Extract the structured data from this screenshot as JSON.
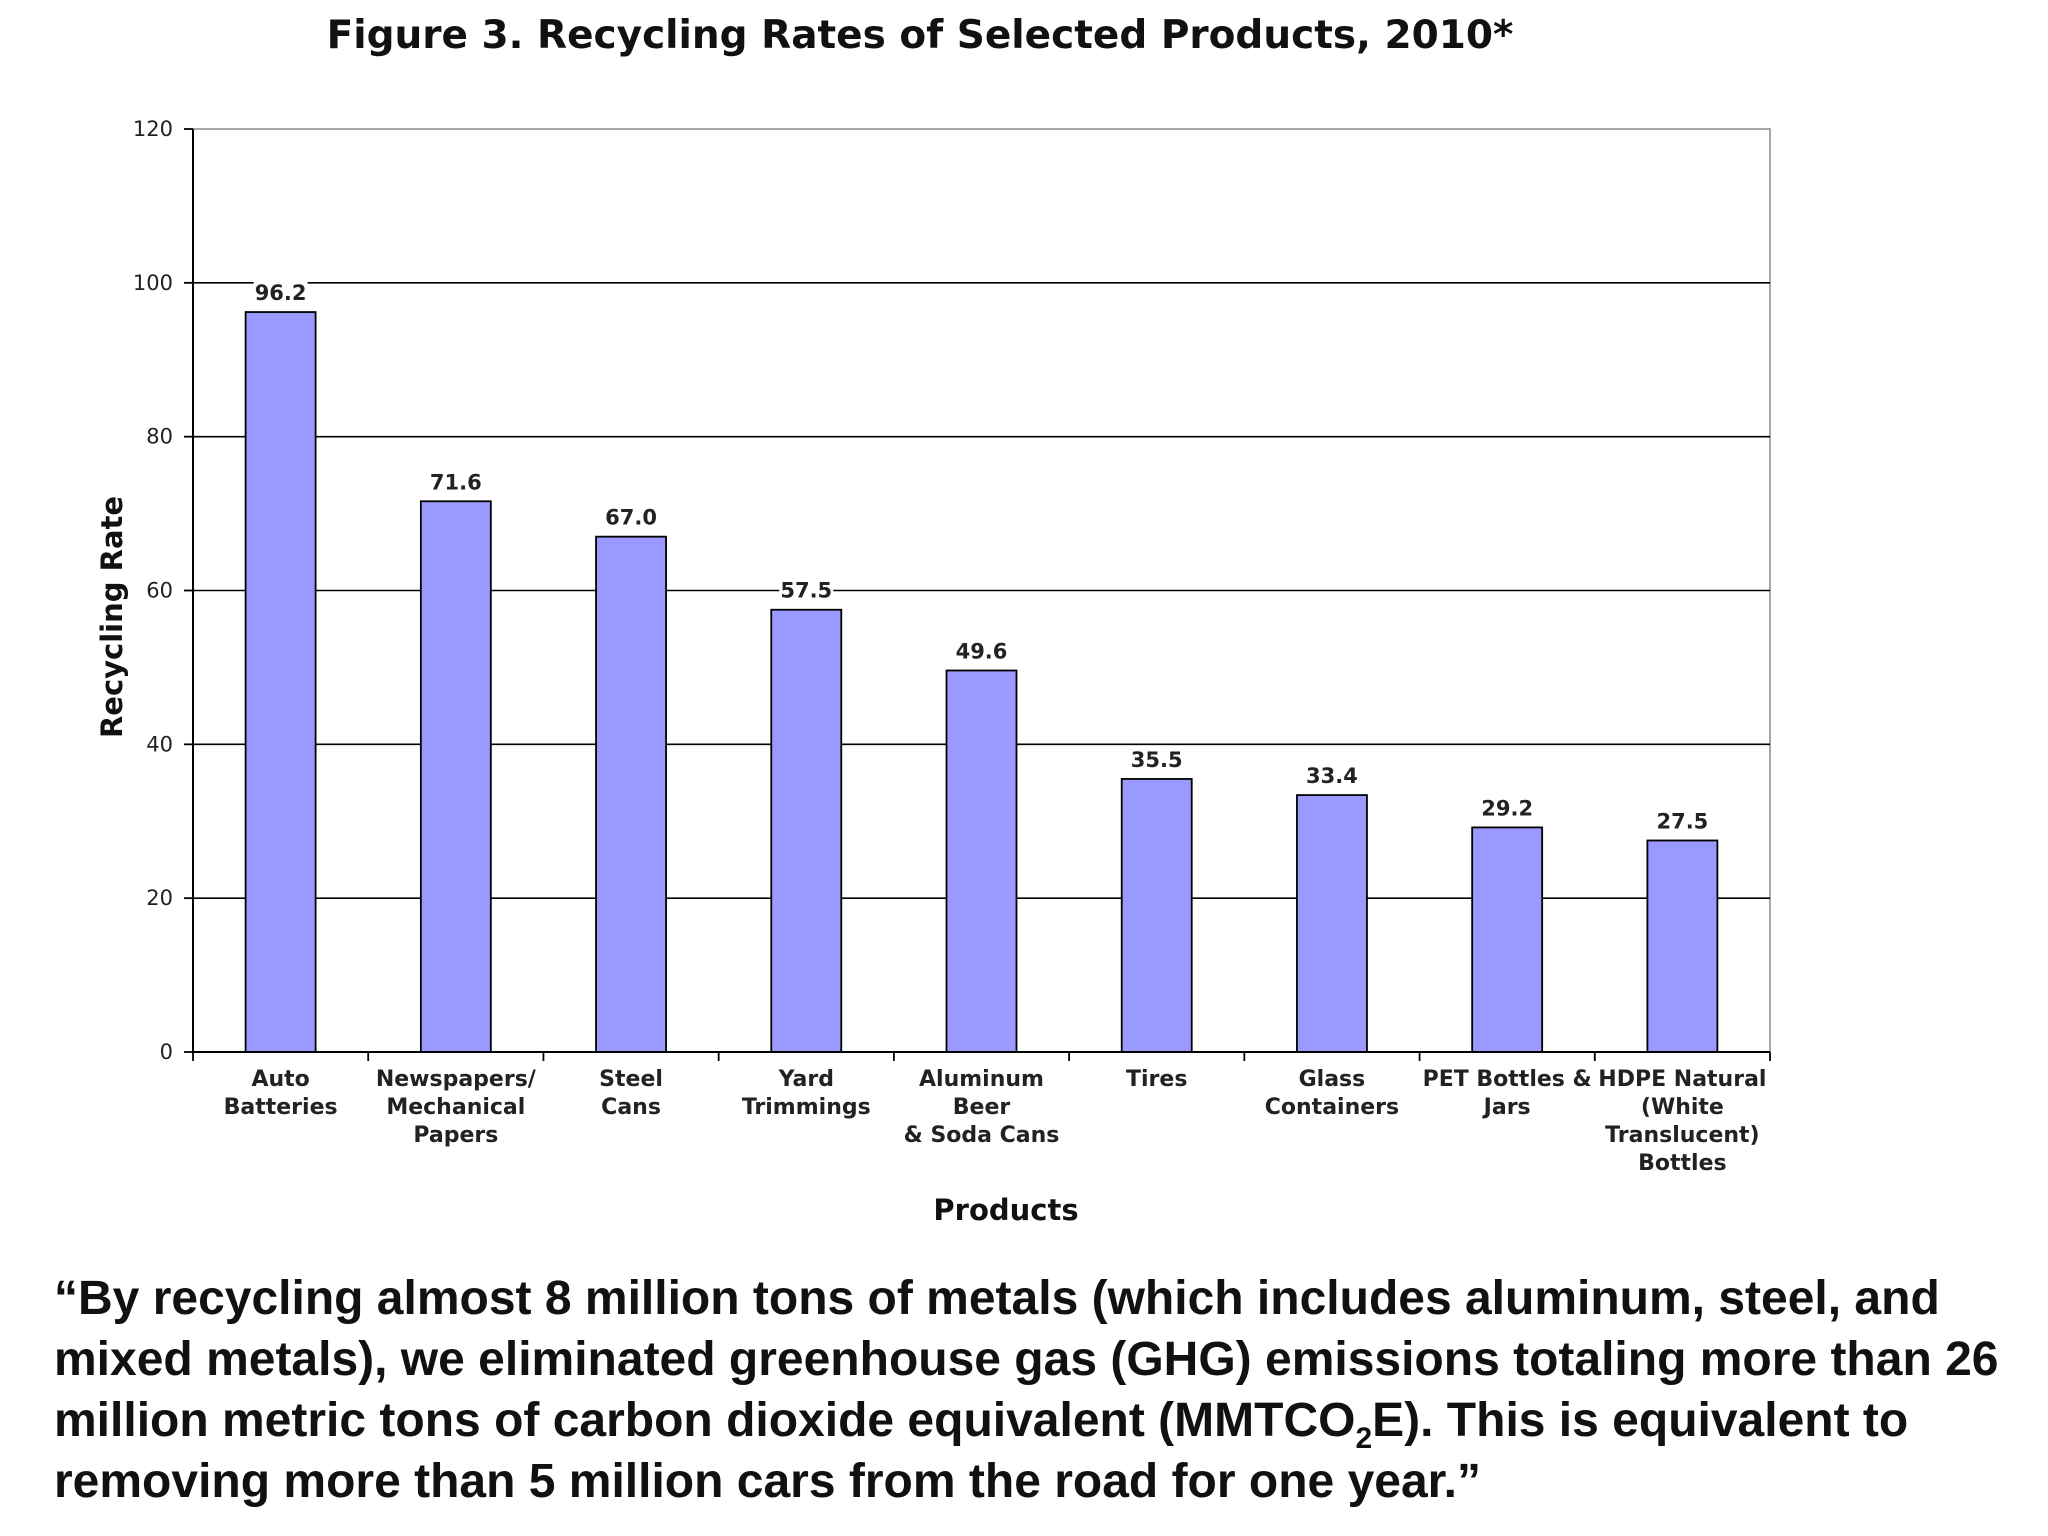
{
  "chart_data": {
    "type": "bar",
    "title": "Figure 3. Recycling Rates of Selected Products, 2010*",
    "xlabel": "Products",
    "ylabel": "Recycling Rate",
    "ylim": [
      0,
      120
    ],
    "yticks": [
      0,
      20,
      40,
      60,
      80,
      100,
      120
    ],
    "grid": true,
    "legend": "none",
    "bar_color": "#9999FF",
    "categories": [
      [
        "Auto",
        "Batteries"
      ],
      [
        "Newspapers/",
        "Mechanical",
        "Papers"
      ],
      [
        "Steel",
        "Cans"
      ],
      [
        "Yard",
        "Trimmings"
      ],
      [
        "Aluminum",
        "Beer",
        "& Soda Cans"
      ],
      [
        "Tires"
      ],
      [
        "Glass",
        "Containers"
      ],
      [
        "PET Bottles  &",
        "Jars"
      ],
      [
        "HDPE Natural",
        "(White",
        "Translucent)",
        "Bottles"
      ]
    ],
    "values": [
      96.2,
      71.6,
      67.0,
      57.5,
      49.6,
      35.5,
      33.4,
      29.2,
      27.5
    ],
    "value_labels": [
      "96.2",
      "71.6",
      "67.0",
      "57.5",
      "49.6",
      "35.5",
      "33.4",
      "29.2",
      "27.5"
    ]
  },
  "caption": {
    "before": "“By recycling almost 8 million tons of metals (which includes aluminum, steel, and mixed metals), we eliminated greenhouse gas (GHG) emissions totaling more than 26 million metric tons of carbon dioxide equivalent (MMTCO",
    "subscript": "2",
    "after": "E). This is equivalent to removing more than 5 million cars from the road for one year.”"
  }
}
